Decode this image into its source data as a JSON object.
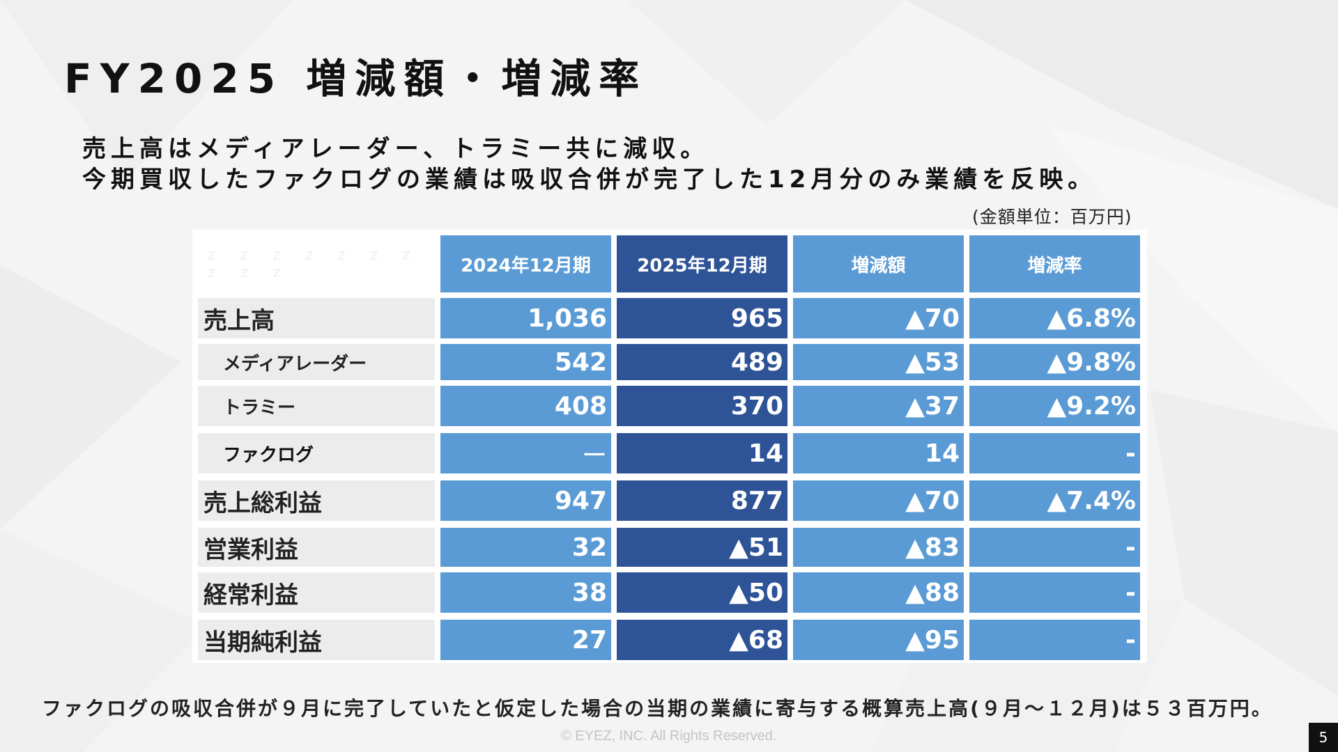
{
  "title": "FY2025 増減額・増減率",
  "subtitle_lines": [
    "売上高はメディアレーダー、トラミー共に減収。",
    "今期買収したファクログの業績は吸収合併が完了した12月分のみ業績を反映。"
  ],
  "unit_note": "(金額単位：百万円)",
  "table": {
    "corner_text": "z z z z z z z z z z",
    "headers": [
      "2024年12月期",
      "2025年12月期",
      "増減額",
      "増減率"
    ],
    "rows": [
      {
        "label": "売上高",
        "values": [
          "1,036",
          "965",
          "▲70",
          "▲6.8%"
        ]
      },
      {
        "label": "メディアレーダー",
        "values": [
          "542",
          "489",
          "▲53",
          "▲9.8%"
        ]
      },
      {
        "label": "トラミー",
        "values": [
          "408",
          "370",
          "▲37",
          "▲9.2%"
        ]
      },
      {
        "label": "ファクログ",
        "values": [
          "ー",
          "14",
          "14",
          "-"
        ]
      },
      {
        "label": "売上総利益",
        "values": [
          "947",
          "877",
          "▲70",
          "▲7.4%"
        ]
      },
      {
        "label": "営業利益",
        "values": [
          "32",
          "▲51",
          "▲83",
          "-"
        ]
      },
      {
        "label": "経常利益",
        "values": [
          "38",
          "▲50",
          "▲88",
          "-"
        ]
      },
      {
        "label": "当期純利益",
        "values": [
          "27",
          "▲68",
          "▲95",
          "-"
        ]
      }
    ]
  },
  "footnote": "ファクログの吸収合併が９月に完了していたと仮定した場合の当期の業績に寄与する概算売上高(９月～１２月)は５３百万円。",
  "copyright": "© EYEZ, INC. All Rights Reserved.",
  "page_number": "5"
}
